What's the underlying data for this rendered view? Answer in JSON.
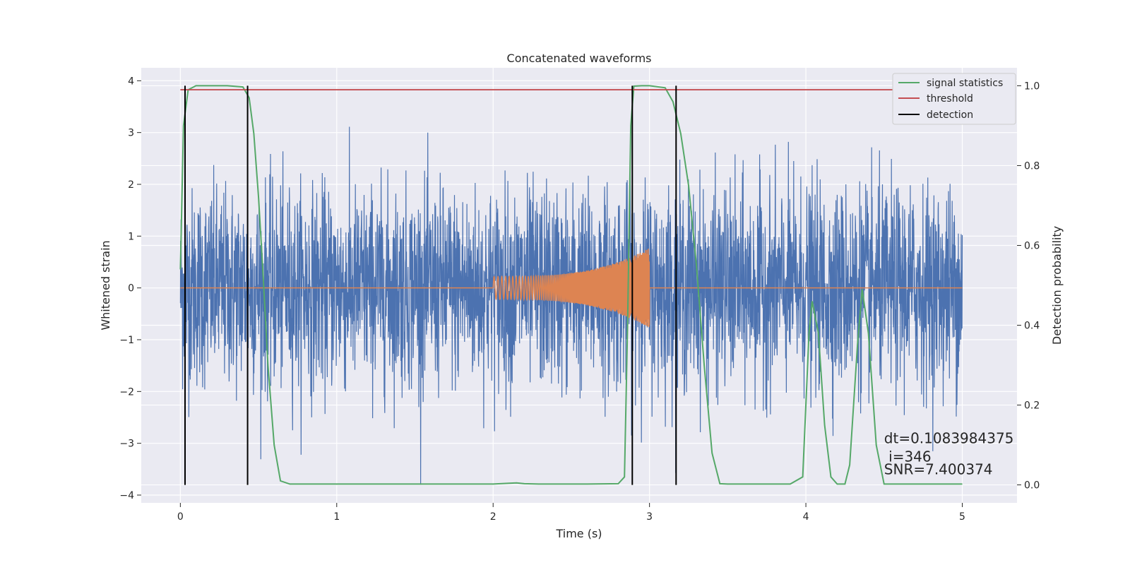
{
  "chart_data": {
    "type": "line",
    "title": "Concatenated waveforms",
    "xlabel": "Time (s)",
    "ylabel": "Whitened strain",
    "ylabel_right": "Detection probability",
    "xlim": [
      -0.25,
      5.35
    ],
    "ylim": [
      -4.15,
      4.25
    ],
    "ylim_right": [
      -0.045,
      1.045
    ],
    "x_ticks": [
      0,
      1,
      2,
      3,
      4,
      5
    ],
    "y_ticks": [
      -4,
      -3,
      -2,
      -1,
      0,
      1,
      2,
      3,
      4
    ],
    "y_ticks_right": [
      0.0,
      0.2,
      0.4,
      0.6,
      0.8,
      1.0
    ],
    "x_tick_labels": [
      "0",
      "1",
      "2",
      "3",
      "4",
      "5"
    ],
    "y_tick_labels": [
      "−4",
      "−3",
      "−2",
      "−1",
      "0",
      "1",
      "2",
      "3",
      "4"
    ],
    "y_tick_labels_right": [
      "0.0",
      "0.2",
      "0.4",
      "0.6",
      "0.8",
      "1.0"
    ],
    "grid": true,
    "legend_position": "top-right",
    "colors": {
      "background": "#eaeaf2",
      "grid": "#ffffff",
      "noise": "#4c72b0",
      "chirp": "#dd8452",
      "signal_statistics": "#55a868",
      "threshold": "#c44e52",
      "detection": "#000000"
    },
    "legend": [
      {
        "label": "signal statistics",
        "color": "#55a868"
      },
      {
        "label": "threshold",
        "color": "#c44e52"
      },
      {
        "label": "detection",
        "color": "#000000"
      }
    ],
    "series": [
      {
        "name": "signal statistics",
        "axis": "right",
        "x": [
          0.0,
          0.02,
          0.05,
          0.1,
          0.2,
          0.3,
          0.4,
          0.44,
          0.47,
          0.5,
          0.53,
          0.56,
          0.6,
          0.64,
          0.7,
          0.9,
          1.2,
          1.5,
          1.8,
          2.0,
          2.1,
          2.15,
          2.2,
          2.3,
          2.6,
          2.8,
          2.84,
          2.86,
          2.88,
          2.9,
          2.95,
          3.0,
          3.1,
          3.15,
          3.2,
          3.25,
          3.3,
          3.35,
          3.4,
          3.45,
          3.5,
          3.7,
          3.9,
          3.98,
          4.02,
          4.04,
          4.08,
          4.12,
          4.16,
          4.2,
          4.25,
          4.28,
          4.33,
          4.36,
          4.4,
          4.45,
          4.5,
          4.7,
          5.0
        ],
        "values": [
          0.54,
          0.9,
          0.99,
          1.0,
          1.0,
          1.0,
          0.997,
          0.97,
          0.88,
          0.72,
          0.52,
          0.3,
          0.1,
          0.01,
          0.002,
          0.002,
          0.002,
          0.002,
          0.002,
          0.002,
          0.004,
          0.005,
          0.003,
          0.002,
          0.002,
          0.003,
          0.02,
          0.4,
          0.9,
          0.999,
          1.0,
          1.0,
          0.995,
          0.96,
          0.88,
          0.75,
          0.55,
          0.3,
          0.08,
          0.003,
          0.002,
          0.002,
          0.002,
          0.02,
          0.38,
          0.46,
          0.38,
          0.15,
          0.02,
          0.002,
          0.002,
          0.05,
          0.35,
          0.49,
          0.38,
          0.1,
          0.002,
          0.002,
          0.002
        ]
      },
      {
        "name": "threshold",
        "axis": "right",
        "x": [
          0,
          5
        ],
        "values": [
          0.99,
          0.99
        ]
      },
      {
        "name": "detection",
        "axis": "right",
        "type": "vlines",
        "x": [
          0.03,
          0.43,
          2.89,
          3.17
        ],
        "ymin": 0.0,
        "ymax": 1.0
      }
    ],
    "annotations": [
      {
        "text": "dt=0.1083984375",
        "x": 4.5,
        "y": -3.0
      },
      {
        "text": " i=346",
        "x": 4.5,
        "y": -3.35
      },
      {
        "text": "SNR=7.400374",
        "x": 4.5,
        "y": -3.6
      }
    ]
  }
}
